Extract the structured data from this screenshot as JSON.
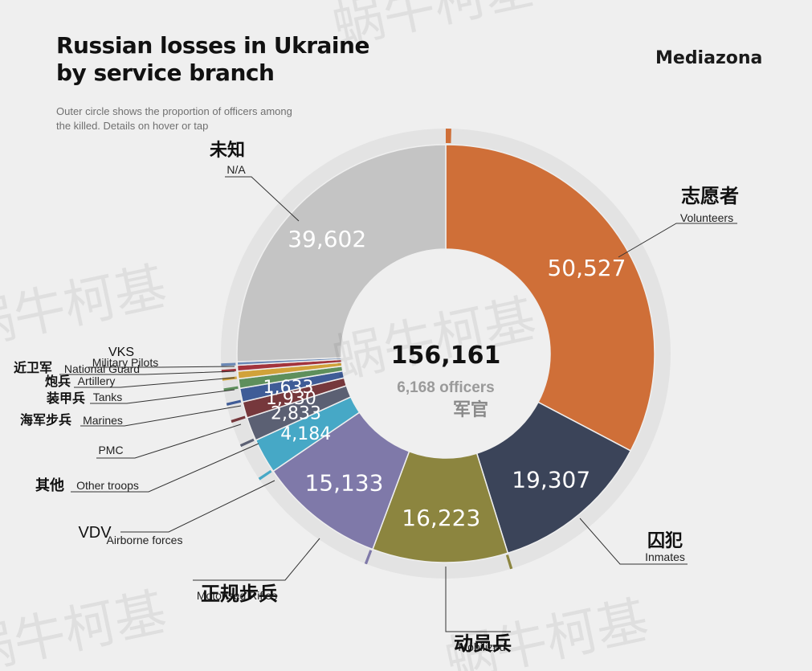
{
  "header": {
    "title": "Russian losses in Ukraine\nby service branch",
    "brand": "Mediazona",
    "subtitle": "Outer circle shows the proportion of officers among the killed. Details on hover or tap"
  },
  "watermark": "蜗牛柯基",
  "center": {
    "total": "156,161",
    "officers": "6,168 officers",
    "officers_cn": "军官"
  },
  "colors": {
    "background": "#efefef",
    "outer_ring": "#e3e3e3",
    "leader_line": "#333333"
  },
  "chart_data": {
    "type": "pie",
    "subtype": "donut",
    "total": 156161,
    "officers_total": 6168,
    "slices": [
      {
        "id": "volunteers",
        "label": "Volunteers",
        "label_cn": "志愿者",
        "value": 50527,
        "value_label": "50,527",
        "color": "#cf6f38",
        "officer_share": 0.012
      },
      {
        "id": "inmates",
        "label": "Inmates",
        "label_cn": "囚犯",
        "value": 19307,
        "value_label": "19,307",
        "color": "#3b4459",
        "officer_share": 0.0
      },
      {
        "id": "mobilized",
        "label": "Mobilized",
        "label_cn": "动员兵",
        "value": 16223,
        "value_label": "16,223",
        "color": "#8c853f",
        "officer_share": 0.006
      },
      {
        "id": "motorised-rifles",
        "label": "Motorised Rifles",
        "label_cn": "正规步兵",
        "value": 15133,
        "value_label": "15,133",
        "color": "#7f79a9",
        "officer_share": 0.018
      },
      {
        "id": "vdv",
        "label": "Airborne forces",
        "label_cn": "",
        "value": 4184,
        "value_label": "4,184",
        "color": "#46a8c6",
        "officer_share": 0.02,
        "label_prefix": "VDV"
      },
      {
        "id": "other-troops",
        "label": "Other troops",
        "label_cn": "其他",
        "value": 2833,
        "value_label": "2,833",
        "color": "#5b6073",
        "officer_share": 0.04
      },
      {
        "id": "pmc",
        "label": "PMC",
        "label_cn": "",
        "value": 1930,
        "value_label": "1,930",
        "color": "#76383c",
        "officer_share": 0.01
      },
      {
        "id": "marines",
        "label": "Marines",
        "label_cn": "海军步兵",
        "value": 1633,
        "value_label": "1,633",
        "color": "#3f5c97",
        "officer_share": 0.03
      },
      {
        "id": "tanks",
        "label": "Tanks",
        "label_cn": "装甲兵",
        "value": 1150,
        "value_label": "",
        "color": "#5e8f5c",
        "officer_share": 0.05
      },
      {
        "id": "artillery",
        "label": "Artillery",
        "label_cn": "炮兵",
        "value": 900,
        "value_label": "",
        "color": "#d1a23a",
        "officer_share": 0.06
      },
      {
        "id": "national-guard",
        "label": "National Guard",
        "label_cn": "近卫军",
        "value": 700,
        "value_label": "",
        "color": "#a3343c",
        "officer_share": 0.04
      },
      {
        "id": "military-pilots",
        "label": "Military Pilots",
        "label_cn": "",
        "value": 400,
        "value_label": "",
        "color": "#6b88b5",
        "officer_share": 0.3,
        "label_prefix": "VKS"
      },
      {
        "id": "n-a",
        "label": "N/A",
        "label_cn": "未知",
        "value": 39602,
        "value_label": "39,602",
        "color": "#c4c4c4",
        "officer_share": 0.0
      }
    ]
  }
}
